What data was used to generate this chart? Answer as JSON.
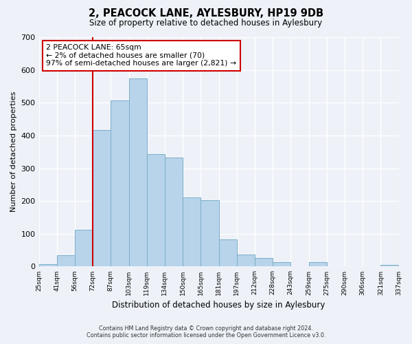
{
  "title": "2, PEACOCK LANE, AYLESBURY, HP19 9DB",
  "subtitle": "Size of property relative to detached houses in Aylesbury",
  "xlabel": "Distribution of detached houses by size in Aylesbury",
  "ylabel": "Number of detached properties",
  "bin_labels": [
    "25sqm",
    "41sqm",
    "56sqm",
    "72sqm",
    "87sqm",
    "103sqm",
    "119sqm",
    "134sqm",
    "150sqm",
    "165sqm",
    "181sqm",
    "197sqm",
    "212sqm",
    "228sqm",
    "243sqm",
    "259sqm",
    "275sqm",
    "290sqm",
    "306sqm",
    "321sqm",
    "337sqm"
  ],
  "bar_values": [
    8,
    35,
    113,
    416,
    507,
    575,
    344,
    333,
    210,
    203,
    82,
    37,
    27,
    13,
    0,
    14,
    0,
    0,
    0,
    5
  ],
  "bar_color": "#b8d4ea",
  "bar_edge_color": "#7aaec8",
  "vline_x": 3,
  "vline_color": "#cc0000",
  "annotation_text": "2 PEACOCK LANE: 65sqm\n← 2% of detached houses are smaller (70)\n97% of semi-detached houses are larger (2,821) →",
  "annotation_box_color": "#ffffff",
  "annotation_box_edge": "#cc0000",
  "ylim": [
    0,
    700
  ],
  "yticks": [
    0,
    100,
    200,
    300,
    400,
    500,
    600,
    700
  ],
  "footer_line1": "Contains HM Land Registry data © Crown copyright and database right 2024.",
  "footer_line2": "Contains public sector information licensed under the Open Government Licence v3.0.",
  "background_color": "#eef2f8"
}
